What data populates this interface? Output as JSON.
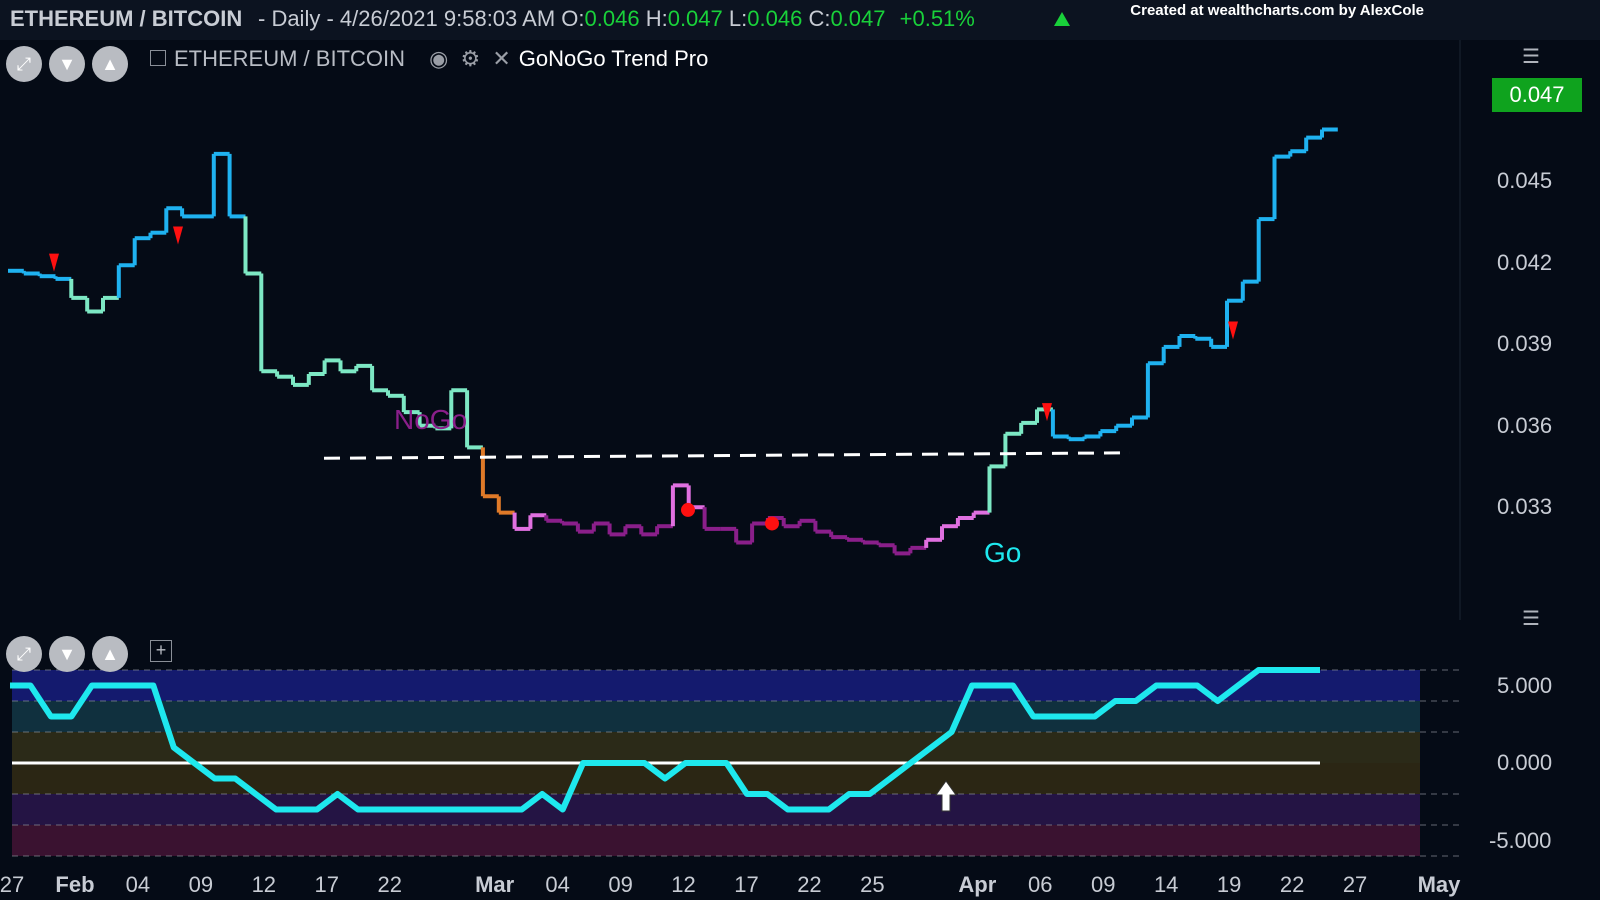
{
  "header": {
    "symbol": "ETHEREUM / BITCOIN",
    "info": "- Daily - 4/26/2021 9:58:03 AM O:",
    "open": "0.046",
    "high_label": "H:",
    "high": "0.047",
    "low_label": "L:",
    "low": "0.046",
    "close_label": "C:",
    "close": "0.047",
    "change": "+0.51%",
    "credit": "Created at wealthcharts.com by AlexCole"
  },
  "legend": {
    "symbol": "ETHEREUM / BITCOIN",
    "indicator": "GoNoGo Trend Pro",
    "eye_icon": "eye-icon",
    "gear_icon": "gear-icon",
    "close_icon": "close-icon",
    "collapse_icon": "minus-box-icon",
    "add_icon": "plus-box-icon"
  },
  "controls": {
    "expand_icon": "expand-icon",
    "down_icon": "chevron-down-icon",
    "up_icon": "chevron-up-icon",
    "menu_icon": "hamburger-icon"
  },
  "price_badge": "0.047",
  "annotations": {
    "nogo": "NoGo",
    "go": "Go"
  },
  "colors": {
    "background": "#050b16",
    "go_strong": "#1fb2f0",
    "go_weak": "#7de8c4",
    "nogo_strong": "#8a1f8a",
    "nogo_weak": "#e070e0",
    "amber": "#e07a28",
    "oscillator": "#1ee8ee",
    "badge": "#0fa31e",
    "marker": "#ff1010"
  },
  "chart_data": [
    {
      "type": "line",
      "title": "ETHEREUM / BITCOIN",
      "y_axis_ticks": [
        "0.033",
        "0.036",
        "0.039",
        "0.042",
        "0.045"
      ],
      "ylim": [
        0.0294,
        0.0485
      ],
      "x_tick_labels": [
        "27",
        "Feb",
        "04",
        "09",
        "12",
        "17",
        "22",
        "Mar",
        "04",
        "09",
        "12",
        "17",
        "22",
        "25",
        "Apr",
        "06",
        "09",
        "14",
        "19",
        "22",
        "27",
        "May"
      ],
      "x_tick_bold": [
        "Feb",
        "Mar",
        "Apr",
        "May"
      ],
      "x_tick_slots": [
        0,
        3,
        6,
        9,
        12,
        15,
        18,
        23,
        26,
        29,
        32,
        35,
        38,
        41,
        46,
        49,
        52,
        55,
        58,
        61,
        64,
        68
      ],
      "slot_count": 70,
      "series": [
        {
          "values": [
            0.0417,
            0.0416,
            0.0415,
            0.0414,
            0.0407,
            0.0402,
            0.0407,
            0.0419,
            0.0429,
            0.0431,
            0.044,
            0.0437,
            0.0437,
            0.046,
            0.0437,
            0.0416,
            0.038,
            0.0378,
            0.0375,
            0.0379,
            0.0384,
            0.038,
            0.0382,
            0.0373,
            0.0371,
            0.0365,
            0.036,
            0.0359,
            0.0373,
            0.0352,
            0.0334,
            0.0328,
            0.0322,
            0.0327,
            0.0325,
            0.0324,
            0.0321,
            0.0324,
            0.032,
            0.0323,
            0.032,
            0.0323,
            0.0338,
            0.033,
            0.0322,
            0.0322,
            0.0317,
            0.0324,
            0.0326,
            0.0323,
            0.0325,
            0.0321,
            0.0319,
            0.0318,
            0.0317,
            0.0316,
            0.0313,
            0.0315,
            0.0318,
            0.0323,
            0.0326,
            0.0328,
            0.0345,
            0.0357,
            0.0361,
            0.0366,
            0.0356,
            0.0355,
            0.0356,
            0.0358,
            0.036,
            0.0363,
            0.0383,
            0.0389,
            0.0393,
            0.0392,
            0.0389,
            0.0406,
            0.0413,
            0.0436,
            0.0459,
            0.0461,
            0.0466,
            0.0469
          ],
          "colors": [
            "go_strong",
            "go_strong",
            "go_strong",
            "go_strong",
            "go_weak",
            "go_weak",
            "go_weak",
            "go_strong",
            "go_strong",
            "go_strong",
            "go_strong",
            "go_strong",
            "go_strong",
            "go_strong",
            "go_strong",
            "go_weak",
            "go_weak",
            "go_weak",
            "go_weak",
            "go_weak",
            "go_weak",
            "go_weak",
            "go_weak",
            "go_weak",
            "go_weak",
            "go_weak",
            "go_weak",
            "go_weak",
            "go_weak",
            "go_weak",
            "amber",
            "amber",
            "nogo_weak",
            "nogo_weak",
            "nogo_strong",
            "nogo_strong",
            "nogo_strong",
            "nogo_strong",
            "nogo_strong",
            "nogo_strong",
            "nogo_strong",
            "nogo_strong",
            "nogo_weak",
            "nogo_weak",
            "nogo_strong",
            "nogo_strong",
            "nogo_strong",
            "nogo_strong",
            "nogo_strong",
            "nogo_strong",
            "nogo_strong",
            "nogo_strong",
            "nogo_strong",
            "nogo_strong",
            "nogo_strong",
            "nogo_strong",
            "nogo_strong",
            "nogo_strong",
            "nogo_weak",
            "nogo_weak",
            "nogo_weak",
            "nogo_weak",
            "go_weak",
            "go_weak",
            "go_weak",
            "go_weak",
            "go_strong",
            "go_strong",
            "go_strong",
            "go_strong",
            "go_strong",
            "go_strong",
            "go_strong",
            "go_strong",
            "go_strong",
            "go_strong",
            "go_strong",
            "go_strong",
            "go_strong",
            "go_strong",
            "go_strong",
            "go_strong",
            "go_strong",
            "go_strong"
          ]
        }
      ],
      "support_line": {
        "from": 0.0348,
        "to": 0.035,
        "style": "dashed"
      },
      "markers": {
        "down_triangles": [
          0.042,
          0.043,
          0.0365,
          0.0395
        ],
        "dots": [
          0.0329,
          0.0324
        ]
      }
    },
    {
      "type": "line",
      "title": "GoNoGo Oscillator",
      "y_axis_ticks": [
        "5.000",
        "0.000",
        "-5.000"
      ],
      "ylim": [
        -6,
        6
      ],
      "series": [
        {
          "values": [
            5,
            5,
            3,
            3,
            5,
            5,
            5,
            5,
            1,
            0,
            -1,
            -1,
            -2,
            -3,
            -3,
            -3,
            -2,
            -3,
            -3,
            -3,
            -3,
            -3,
            -3,
            -3,
            -3,
            -3,
            -2,
            -3,
            0,
            0,
            0,
            0,
            -1,
            0,
            0,
            0,
            -2,
            -2,
            -3,
            -3,
            -3,
            -2,
            -2,
            -1,
            0,
            1,
            2,
            5,
            5,
            5,
            3,
            3,
            3,
            3,
            4,
            4,
            5,
            5,
            5,
            4,
            5,
            6,
            6,
            6,
            6
          ]
        }
      ],
      "zero_line": 0,
      "markers": {
        "up_arrow": 0
      }
    }
  ]
}
